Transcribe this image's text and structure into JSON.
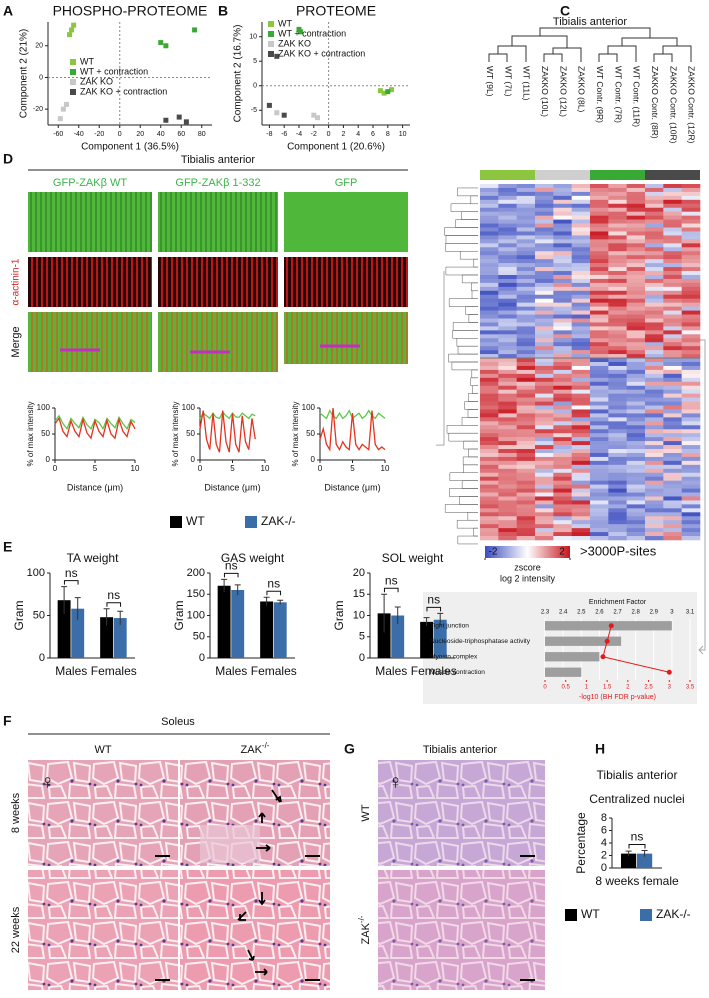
{
  "panel_labels": [
    "A",
    "B",
    "C",
    "D",
    "E",
    "F",
    "G",
    "H"
  ],
  "chart_data": [
    {
      "type": "scatter",
      "title": "PHOSPHO-PROTEOME",
      "xlabel": "Component 1 (36.5%)",
      "ylabel": "Component 2 (21%)",
      "xlim": [
        -70,
        90
      ],
      "xticks": [
        -60,
        -40,
        -20,
        0,
        20,
        40,
        60,
        80
      ],
      "ylim": [
        -30,
        35
      ],
      "yticks": [
        -20,
        0,
        20
      ],
      "series": [
        {
          "name": "WT",
          "color": "#8cc63f",
          "x": [
            -47,
            -45,
            -49
          ],
          "values": [
            30,
            33,
            27
          ]
        },
        {
          "name": "WT + contraction",
          "color": "#39a935",
          "x": [
            40,
            45,
            73
          ],
          "values": [
            22,
            20,
            30
          ]
        },
        {
          "name": "ZAK KO",
          "color": "#c8c8c8",
          "x": [
            -55,
            -52,
            -58
          ],
          "values": [
            -20,
            -17,
            -26
          ]
        },
        {
          "name": "ZAK KO + contraction",
          "color": "#4a4a4a",
          "x": [
            45,
            58,
            65
          ],
          "values": [
            -27,
            -25,
            -28
          ]
        }
      ]
    },
    {
      "type": "scatter",
      "title": "PROTEOME",
      "xlabel": "Component 1 (20.6%)",
      "ylabel": "Component 2 (16.7%)",
      "xlim": [
        -9,
        11
      ],
      "xticks": [
        -8,
        -6,
        -4,
        -2,
        0,
        2,
        4,
        6,
        8,
        10
      ],
      "ylim": [
        -8,
        13
      ],
      "yticks": [
        -5,
        0,
        5,
        10
      ],
      "series": [
        {
          "name": "WT",
          "color": "#8cc63f",
          "x": [
            7,
            7.5,
            8.5
          ],
          "values": [
            -1,
            -1.5,
            -0.8
          ]
        },
        {
          "name": "WT + contraction",
          "color": "#39a935",
          "x": [
            -4,
            -3.8,
            8
          ],
          "values": [
            11.5,
            11,
            -1.2
          ]
        },
        {
          "name": "ZAK KO",
          "color": "#c8c8c8",
          "x": [
            -2,
            -1.5,
            -7
          ],
          "values": [
            -6,
            -6.5,
            -5.5
          ]
        },
        {
          "name": "ZAK KO + contraction",
          "color": "#4a4a4a",
          "x": [
            -7,
            -8,
            -6
          ],
          "values": [
            6,
            -4,
            -6
          ]
        }
      ]
    },
    {
      "type": "line",
      "xlabel": "Distance (μm)",
      "ylabel": "% of max intensity",
      "xlim": [
        0,
        10
      ],
      "xticks": [
        0,
        5,
        10
      ],
      "ylim": [
        0,
        100
      ],
      "yticks": [
        0,
        50,
        100
      ],
      "x": [
        0,
        0.5,
        1,
        1.5,
        2,
        2.5,
        3,
        3.5,
        4,
        4.5,
        5,
        5.5,
        6,
        6.5,
        7,
        7.5,
        8,
        8.5,
        9,
        9.5,
        10
      ],
      "series": [
        {
          "color": "#5cc84a",
          "values": [
            75,
            85,
            70,
            60,
            80,
            70,
            62,
            82,
            68,
            60,
            78,
            72,
            60,
            80,
            70,
            62,
            82,
            70,
            60,
            78,
            72
          ]
        },
        {
          "color": "#e8321e",
          "values": [
            70,
            80,
            55,
            45,
            75,
            55,
            45,
            78,
            52,
            42,
            75,
            55,
            45,
            76,
            50,
            42,
            78,
            55,
            45,
            74,
            60
          ]
        }
      ]
    },
    {
      "type": "line",
      "xlabel": "Distance (μm)",
      "ylabel": "% of max intensity",
      "xlim": [
        0,
        10
      ],
      "xticks": [
        0,
        5,
        10
      ],
      "ylim": [
        0,
        100
      ],
      "yticks": [
        0,
        50,
        100
      ],
      "x": [
        0,
        0.5,
        1,
        1.5,
        2,
        2.5,
        3,
        3.5,
        4,
        4.5,
        5,
        5.5,
        6,
        6.5,
        7,
        7.5,
        8,
        8.5
      ],
      "series": [
        {
          "color": "#5cc84a",
          "values": [
            80,
            90,
            85,
            80,
            90,
            82,
            80,
            92,
            85,
            80,
            90,
            83,
            82,
            90,
            85,
            80,
            88,
            85
          ]
        },
        {
          "color": "#e8321e",
          "values": [
            60,
            95,
            40,
            20,
            90,
            30,
            15,
            95,
            35,
            15,
            90,
            30,
            15,
            85,
            35,
            20,
            80,
            40
          ]
        }
      ]
    },
    {
      "type": "line",
      "xlabel": "Distance (μm)",
      "ylabel": "% of max intensity",
      "xlim": [
        0,
        10
      ],
      "xticks": [
        0,
        5,
        10
      ],
      "ylim": [
        0,
        100
      ],
      "yticks": [
        0,
        50,
        100
      ],
      "x": [
        0,
        0.5,
        1,
        1.5,
        2,
        2.5,
        3,
        3.5,
        4,
        4.5,
        5,
        5.5,
        6,
        6.5,
        7,
        7.5,
        8,
        8.5,
        9,
        9.5,
        10
      ],
      "series": [
        {
          "color": "#5cc84a",
          "values": [
            90,
            85,
            80,
            95,
            85,
            80,
            90,
            80,
            85,
            95,
            80,
            85,
            90,
            80,
            85,
            95,
            85,
            80,
            90,
            85,
            80
          ]
        },
        {
          "color": "#e8321e",
          "values": [
            40,
            60,
            30,
            20,
            100,
            30,
            20,
            35,
            25,
            20,
            90,
            30,
            20,
            30,
            25,
            20,
            95,
            30,
            20,
            25,
            20
          ]
        }
      ]
    },
    {
      "type": "bar",
      "title": "TA weight",
      "ylabel": "Gram",
      "categories": [
        "Males",
        "Females"
      ],
      "ylim": [
        0,
        100
      ],
      "yticks": [
        0,
        50,
        100
      ],
      "annotations": [
        "ns",
        "ns"
      ],
      "series": [
        {
          "name": "WT",
          "color": "#000000",
          "values": [
            68,
            48
          ],
          "errors": [
            16,
            10
          ]
        },
        {
          "name": "ZAK-/-",
          "color": "#3b6ea8",
          "values": [
            58,
            47
          ],
          "errors": [
            13,
            8
          ]
        }
      ]
    },
    {
      "type": "bar",
      "title": "GAS weight",
      "ylabel": "Gram",
      "categories": [
        "Males",
        "Females"
      ],
      "ylim": [
        0,
        200
      ],
      "yticks": [
        0,
        50,
        100,
        150,
        200
      ],
      "annotations": [
        "ns",
        "ns"
      ],
      "series": [
        {
          "color": "#000000",
          "values": [
            170,
            133
          ],
          "errors": [
            15,
            10
          ]
        },
        {
          "color": "#3b6ea8",
          "values": [
            160,
            131
          ],
          "errors": [
            12,
            5
          ]
        }
      ]
    },
    {
      "type": "bar",
      "title": "SOL weight",
      "ylabel": "Gram",
      "categories": [
        "Males",
        "Females"
      ],
      "ylim": [
        0,
        20
      ],
      "yticks": [
        0,
        5,
        10,
        15,
        20
      ],
      "annotations": [
        "ns",
        "ns"
      ],
      "series": [
        {
          "color": "#000000",
          "values": [
            10.5,
            8.5
          ],
          "errors": [
            4.5,
            1
          ]
        },
        {
          "color": "#3b6ea8",
          "values": [
            10,
            9
          ],
          "errors": [
            2,
            1.5
          ]
        }
      ]
    },
    {
      "type": "bar",
      "orientation": "horizontal",
      "xlabel": "Enrichment Factor",
      "x2label": "-log10 (BH FDR p-value)",
      "categories": [
        "Tight junction",
        "Nucleoside-triphosphatase activity",
        "Myosin complex",
        "Muscle contraction"
      ],
      "xlim": [
        2.3,
        3.1
      ],
      "xticks": [
        2.3,
        2.4,
        2.5,
        2.6,
        2.7,
        2.8,
        2.9,
        3,
        3.1
      ],
      "x2lim": [
        0,
        3.5
      ],
      "x2ticks": [
        0,
        0.5,
        1,
        1.5,
        2,
        2.5,
        3,
        3.5
      ],
      "series": [
        {
          "color": "#9e9e9e",
          "values": [
            3,
            2.72,
            2.6,
            2.5
          ]
        },
        {
          "color": "#e31a1c",
          "axis": "x2",
          "values": [
            1.6,
            1.5,
            1.4,
            3
          ]
        }
      ]
    },
    {
      "type": "bar",
      "title": "Tibialis anterior",
      "subtitle": "Centralized nuclei",
      "ylabel": "Percentage",
      "categories": [
        "8 weeks female"
      ],
      "ylim": [
        0,
        8
      ],
      "yticks": [
        0,
        2,
        4,
        6,
        8
      ],
      "annotations": [
        "ns"
      ],
      "series": [
        {
          "name": "WT",
          "color": "#000000",
          "values": [
            2.3
          ],
          "errors": [
            0.4
          ]
        },
        {
          "name": "ZAK-/-",
          "color": "#3b6ea8",
          "values": [
            2.3
          ],
          "errors": [
            0.5
          ]
        }
      ]
    }
  ],
  "heatmap": {
    "title": "Tibialis anterior",
    "columns": [
      "WT (9L)",
      "WT (7L)",
      "WT (11L)",
      "ZAKKO (10L)",
      "ZAKKO (12L)",
      "ZAKKO (8L)",
      "WT Contr. (9R)",
      "WT Contr. (7R)",
      "WT Contr. (11R)",
      "ZAKKO Contr. (8R)",
      "ZAKKO Contr. (10R)",
      "ZAKKO Contr. (12R)"
    ],
    "colorbar": {
      "lim": [
        -2,
        2
      ],
      "ticks": [
        -2,
        2
      ],
      "label": "zscore",
      "sublabel": "log 2 intensity"
    },
    "note": ">3000P-sites"
  },
  "imaging": {
    "title": "Tibialis anterior",
    "columns": [
      "GFP-ZAKβ WT",
      "GFP-ZAKβ 1-332",
      "GFP"
    ],
    "rows": [
      "α-actinin-1",
      "Merge"
    ]
  },
  "histology_f": {
    "title": "Soleus",
    "columns": [
      {
        "base": "WT"
      },
      {
        "base": "ZAK",
        "sup": "-/-"
      }
    ],
    "rows": [
      "8 weeks",
      "22 weeks"
    ],
    "sex": "♀"
  },
  "histology_g": {
    "title": "Tibialis anterior",
    "rows": [
      {
        "base": "WT"
      },
      {
        "base": "ZAK",
        "sup": "-/-"
      }
    ],
    "sex": "♀"
  }
}
